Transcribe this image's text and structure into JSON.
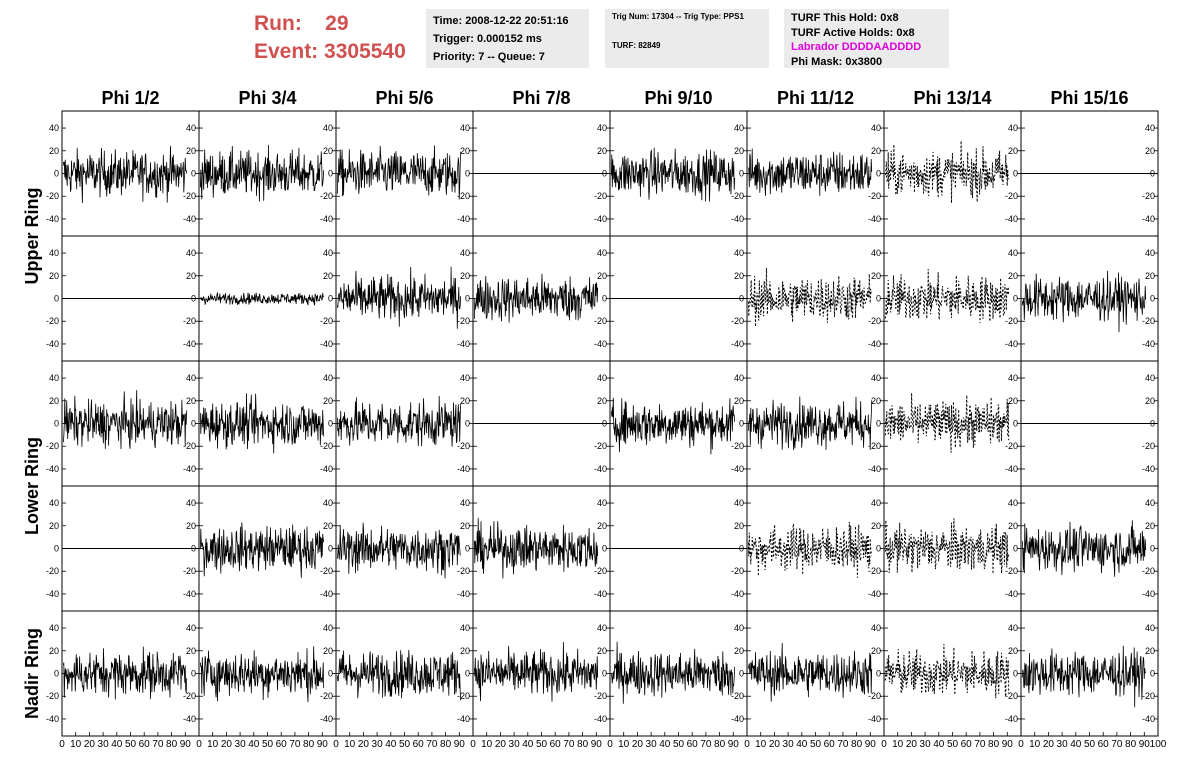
{
  "header": {
    "run_label": "Run:",
    "run_value": "29",
    "event_label": "Event:",
    "event_value": "3305540",
    "time": "Time: 2008-12-22 20:51:16",
    "trigger": "Trigger: 0.000152 ms",
    "priority": "Priority: 7 -- Queue: 7",
    "trig_num": "Trig Num: 17304 -- Trig Type: PPS1",
    "turf": "TURF: 82849",
    "turf_this_hold": "TURF This Hold: 0x8",
    "turf_active_holds": "TURF Active Holds: 0x8",
    "labrador": "Labrador DDDDAADDDD",
    "phi_mask": "Phi Mask: 0x3800"
  },
  "colors": {
    "run_text": "#d05050",
    "labrador_text": "#e000e0",
    "info_box_bg": "#ebebeb",
    "trace": "#000000"
  },
  "chart_data": {
    "type": "line",
    "grid_columns": [
      "Phi 1/2",
      "Phi 3/4",
      "Phi 5/6",
      "Phi 7/8",
      "Phi 9/10",
      "Phi 11/12",
      "Phi 13/14",
      "Phi 15/16"
    ],
    "ring_labels": [
      "Upper Ring",
      "Lower Ring",
      "Nadir Ring"
    ],
    "panel_rows": 5,
    "ylim": [
      -55,
      55
    ],
    "xlim": [
      0,
      100
    ],
    "y_ticks": [
      "-40",
      "-20",
      "0",
      "20",
      "40"
    ],
    "x_ticks": [
      "0",
      "10",
      "20",
      "30",
      "40",
      "50",
      "60",
      "70",
      "80",
      "90",
      "100"
    ],
    "panels": [
      [
        "noise",
        "noise",
        "noise",
        "flat",
        "noise",
        "noise",
        "dotted",
        "flat"
      ],
      [
        "flat",
        "small",
        "noise",
        "noise",
        "flat",
        "dotted",
        "dotted",
        "noise"
      ],
      [
        "noise",
        "noise",
        "noise",
        "flat",
        "noise",
        "noise",
        "dotted",
        "flat"
      ],
      [
        "flat",
        "noise",
        "noise",
        "noise",
        "flat",
        "dotted",
        "dotted",
        "noise"
      ],
      [
        "noise",
        "noise",
        "noise",
        "noise",
        "noise",
        "noise",
        "dotted",
        "noise"
      ]
    ],
    "trace_amplitude_approx": 30
  }
}
